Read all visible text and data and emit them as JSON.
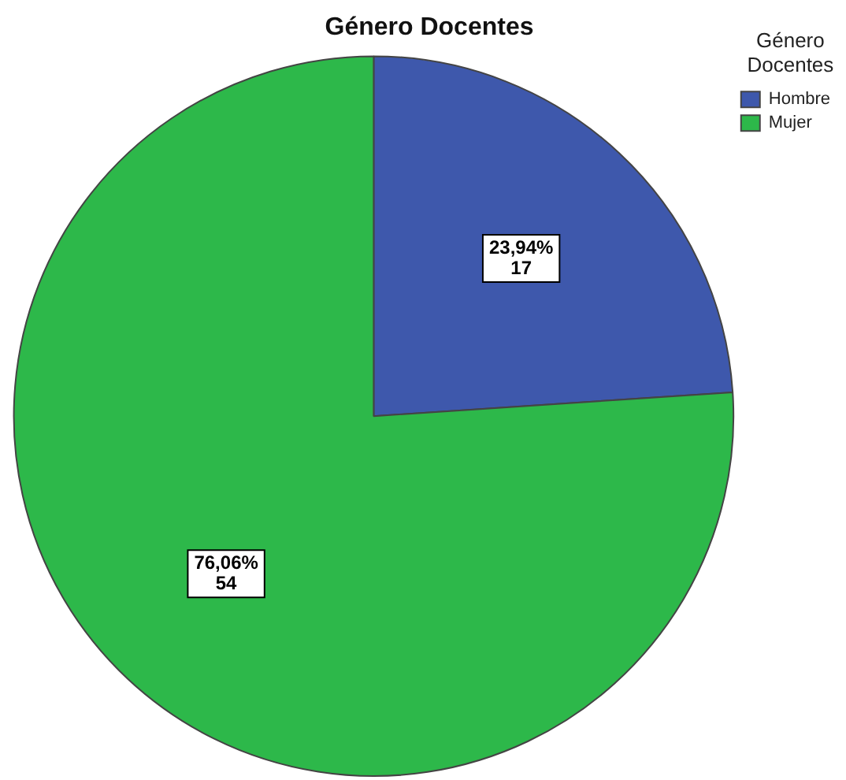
{
  "chart_data": {
    "type": "pie",
    "title": "Género Docentes",
    "legend_title": "Género Docentes",
    "legend": "top right",
    "categories": [
      "Hombre",
      "Mujer"
    ],
    "values": [
      17,
      54
    ],
    "colors": [
      "#3e58ac",
      "#2db84a"
    ],
    "value_labels": [
      "23,94%\n17",
      "76,06%\n54"
    ]
  }
}
